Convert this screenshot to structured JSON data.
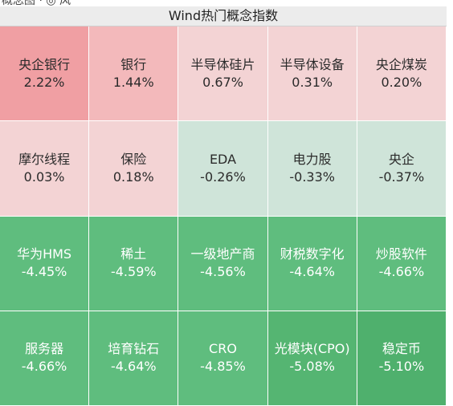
{
  "window": {
    "top_strip_text": "概念图 · ◎ 风",
    "title": "Wind热门概念指数"
  },
  "chart_data": {
    "type": "heatmap",
    "title": "Wind热门概念指数",
    "unit": "%",
    "tiles": [
      {
        "name": "央企银行",
        "change_text": "2.22%",
        "value": 2.22,
        "color": "#f09fa3"
      },
      {
        "name": "银行",
        "change_text": "1.44%",
        "value": 1.44,
        "color": "#f3b9bb"
      },
      {
        "name": "半导体硅片",
        "change_text": "0.67%",
        "value": 0.67,
        "color": "#f3d3d4"
      },
      {
        "name": "半导体设备",
        "change_text": "0.31%",
        "value": 0.31,
        "color": "#f3d3d4"
      },
      {
        "name": "央企煤炭",
        "change_text": "0.20%",
        "value": 0.2,
        "color": "#f3d3d4"
      },
      {
        "name": "摩尔线程",
        "change_text": "0.03%",
        "value": 0.03,
        "color": "#f3d3d4"
      },
      {
        "name": "保险",
        "change_text": "0.18%",
        "value": 0.18,
        "color": "#f3d3d4"
      },
      {
        "name": "EDA",
        "change_text": "-0.26%",
        "value": -0.26,
        "color": "#cfe4d9"
      },
      {
        "name": "电力股",
        "change_text": "-0.33%",
        "value": -0.33,
        "color": "#cfe4d9"
      },
      {
        "name": "央企",
        "change_text": "-0.37%",
        "value": -0.37,
        "color": "#cfe4d9"
      },
      {
        "name": "华为HMS",
        "change_text": "-4.45%",
        "value": -4.45,
        "color": "#5fbd7e"
      },
      {
        "name": "稀土",
        "change_text": "-4.59%",
        "value": -4.59,
        "color": "#5fbd7e"
      },
      {
        "name": "一级地产商",
        "change_text": "-4.56%",
        "value": -4.56,
        "color": "#5fbd7e"
      },
      {
        "name": "财税数字化",
        "change_text": "-4.64%",
        "value": -4.64,
        "color": "#5fbd7e"
      },
      {
        "name": "炒股软件",
        "change_text": "-4.66%",
        "value": -4.66,
        "color": "#5fbd7e"
      },
      {
        "name": "服务器",
        "change_text": "-4.66%",
        "value": -4.66,
        "color": "#5fbd7e"
      },
      {
        "name": "培育钻石",
        "change_text": "-4.64%",
        "value": -4.64,
        "color": "#5fbd7e"
      },
      {
        "name": "CRO",
        "change_text": "-4.85%",
        "value": -4.85,
        "color": "#5fbd7e"
      },
      {
        "name": "光模块(CPO)",
        "change_text": "-5.08%",
        "value": -5.08,
        "color": "#55b572"
      },
      {
        "name": "稳定币",
        "change_text": "-5.10%",
        "value": -5.1,
        "color": "#4fb06d"
      }
    ]
  }
}
